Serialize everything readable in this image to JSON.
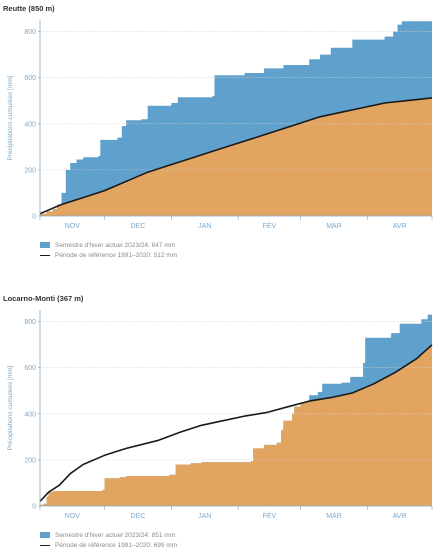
{
  "colors": {
    "actual": "#5fa0cc",
    "reference": "#e2a461",
    "line": "#1a1a1a",
    "grid": "#cfcfcf",
    "axis": "#7fa8c8"
  },
  "chart_data": [
    {
      "type": "area",
      "title": "Reutte (850 m)",
      "ylabel": "Précipitations cumulées [mm]",
      "ylim": [
        0,
        850
      ],
      "yticks": [
        0,
        200,
        400,
        600,
        800
      ],
      "months": [
        "NOV",
        "DEC",
        "JAN",
        "FÉV",
        "MAR",
        "AVR"
      ],
      "day_range": [
        0,
        182
      ],
      "month_starts": [
        0,
        30,
        61,
        92,
        121,
        152,
        182
      ],
      "grid": true,
      "series": [
        {
          "name": "Semestre d'hiver actuel 2023/24: 847 mm",
          "points": [
            [
              0,
              10
            ],
            [
              3,
              20
            ],
            [
              6,
              30
            ],
            [
              8,
              50
            ],
            [
              10,
              100
            ],
            [
              12,
              200
            ],
            [
              14,
              230
            ],
            [
              17,
              245
            ],
            [
              20,
              255
            ],
            [
              27,
              260
            ],
            [
              28,
              330
            ],
            [
              36,
              340
            ],
            [
              38,
              390
            ],
            [
              40,
              415
            ],
            [
              47,
              420
            ],
            [
              50,
              478
            ],
            [
              61,
              490
            ],
            [
              64,
              515
            ],
            [
              80,
              520
            ],
            [
              81,
              610
            ],
            [
              95,
              620
            ],
            [
              104,
              640
            ],
            [
              113,
              655
            ],
            [
              125,
              680
            ],
            [
              130,
              700
            ],
            [
              135,
              730
            ],
            [
              145,
              765
            ],
            [
              160,
              778
            ],
            [
              164,
              800
            ],
            [
              166,
              830
            ],
            [
              168,
              845
            ],
            [
              182,
              847
            ]
          ]
        },
        {
          "name": "Période de référence 1991–2020: 512 mm",
          "points": [
            [
              0,
              10
            ],
            [
              10,
              50
            ],
            [
              20,
              80
            ],
            [
              30,
              110
            ],
            [
              40,
              150
            ],
            [
              50,
              190
            ],
            [
              60,
              220
            ],
            [
              70,
              250
            ],
            [
              80,
              280
            ],
            [
              90,
              310
            ],
            [
              100,
              340
            ],
            [
              110,
              370
            ],
            [
              120,
              400
            ],
            [
              130,
              430
            ],
            [
              140,
              450
            ],
            [
              150,
              470
            ],
            [
              160,
              490
            ],
            [
              170,
              500
            ],
            [
              182,
              512
            ]
          ]
        }
      ]
    },
    {
      "type": "area",
      "title": "Locarno-Monti (367 m)",
      "ylabel": "Précipitations cumulées [mm]",
      "ylim": [
        0,
        850
      ],
      "yticks": [
        0,
        200,
        400,
        600,
        800
      ],
      "months": [
        "NOV",
        "DEC",
        "JAN",
        "FÉV",
        "MAR",
        "AVR"
      ],
      "day_range": [
        0,
        182
      ],
      "month_starts": [
        0,
        30,
        61,
        92,
        121,
        152,
        182
      ],
      "grid": true,
      "series": [
        {
          "name": "Semestre d'hiver actuel 2023/24: 851 mm",
          "points": [
            [
              0,
              5
            ],
            [
              2,
              10
            ],
            [
              3,
              40
            ],
            [
              4,
              60
            ],
            [
              6,
              65
            ],
            [
              29,
              70
            ],
            [
              30,
              120
            ],
            [
              37,
              125
            ],
            [
              40,
              130
            ],
            [
              60,
              135
            ],
            [
              63,
              180
            ],
            [
              70,
              185
            ],
            [
              75,
              190
            ],
            [
              98,
              195
            ],
            [
              99,
              250
            ],
            [
              104,
              265
            ],
            [
              110,
              275
            ],
            [
              112,
              330
            ],
            [
              113,
              370
            ],
            [
              117,
              400
            ],
            [
              118,
              430
            ],
            [
              121,
              450
            ],
            [
              125,
              480
            ],
            [
              129,
              495
            ],
            [
              131,
              530
            ],
            [
              140,
              535
            ],
            [
              144,
              560
            ],
            [
              150,
              620
            ],
            [
              151,
              730
            ],
            [
              163,
              750
            ],
            [
              167,
              790
            ],
            [
              177,
              810
            ],
            [
              180,
              830
            ],
            [
              182,
              851
            ]
          ]
        },
        {
          "name": "Période de référence 1991–2020: 699 mm",
          "points": [
            [
              0,
              20
            ],
            [
              4,
              60
            ],
            [
              9,
              90
            ],
            [
              14,
              140
            ],
            [
              20,
              180
            ],
            [
              30,
              220
            ],
            [
              40,
              250
            ],
            [
              55,
              285
            ],
            [
              65,
              320
            ],
            [
              75,
              350
            ],
            [
              85,
              370
            ],
            [
              95,
              390
            ],
            [
              105,
              405
            ],
            [
              115,
              430
            ],
            [
              125,
              455
            ],
            [
              135,
              470
            ],
            [
              145,
              490
            ],
            [
              155,
              530
            ],
            [
              165,
              580
            ],
            [
              175,
              640
            ],
            [
              182,
              699
            ]
          ]
        }
      ]
    }
  ]
}
